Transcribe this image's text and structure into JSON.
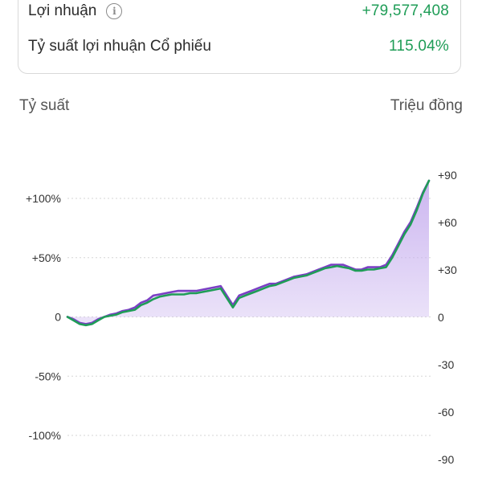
{
  "summary": {
    "profit_label": "Lợi nhuận",
    "profit_info_icon": "info-icon",
    "profit_value": "+79,577,408",
    "return_label": "Tỷ suất lợi nhuận Cổ phiếu",
    "return_value": "115.04%",
    "positive_color": "#1f9d57"
  },
  "chart_data": {
    "type": "area",
    "left_axis_title": "Tỷ suất",
    "right_axis_title": "Triệu đồng",
    "left_ticks": [
      {
        "value": 100,
        "label": "+100%"
      },
      {
        "value": 50,
        "label": "+50%"
      },
      {
        "value": 0,
        "label": "0"
      },
      {
        "value": -50,
        "label": "-50%"
      },
      {
        "value": -100,
        "label": "-100%"
      }
    ],
    "right_ticks": [
      {
        "value": 90,
        "label": "+90"
      },
      {
        "value": 60,
        "label": "+60"
      },
      {
        "value": 30,
        "label": "+30"
      },
      {
        "value": 0,
        "label": "0"
      },
      {
        "value": -30,
        "label": "-30"
      },
      {
        "value": -60,
        "label": "-60"
      },
      {
        "value": -90,
        "label": "-90"
      }
    ],
    "left_ylim": [
      -100,
      100
    ],
    "right_ylim": [
      -90,
      90
    ],
    "grid": "dotted",
    "series": [
      {
        "color": "#7b3fc4",
        "fill": "#c9b2ef",
        "values": [
          0,
          -2,
          -5,
          -6,
          -5,
          -2,
          0,
          2,
          3,
          5,
          6,
          8,
          12,
          14,
          18,
          19,
          20,
          21,
          22,
          22,
          22,
          22,
          23,
          24,
          25,
          26,
          18,
          10,
          18,
          20,
          22,
          24,
          26,
          28,
          28,
          30,
          32,
          34,
          35,
          36,
          38,
          40,
          42,
          44,
          44,
          44,
          42,
          40,
          40,
          42,
          42,
          42,
          44,
          52,
          62,
          72,
          80,
          92,
          105,
          115
        ]
      },
      {
        "color": "#1f9d57",
        "fill": "#c9b2ef",
        "values": [
          0,
          -3,
          -6,
          -7,
          -6,
          -3,
          0,
          1,
          2,
          4,
          5,
          6,
          10,
          12,
          15,
          17,
          18,
          19,
          19,
          19,
          20,
          20,
          21,
          22,
          23,
          24,
          16,
          8,
          16,
          18,
          20,
          22,
          24,
          26,
          27,
          29,
          31,
          33,
          34,
          35,
          37,
          39,
          41,
          42,
          43,
          42,
          41,
          39,
          39,
          40,
          40,
          41,
          42,
          50,
          60,
          70,
          78,
          90,
          104,
          115
        ]
      }
    ]
  }
}
